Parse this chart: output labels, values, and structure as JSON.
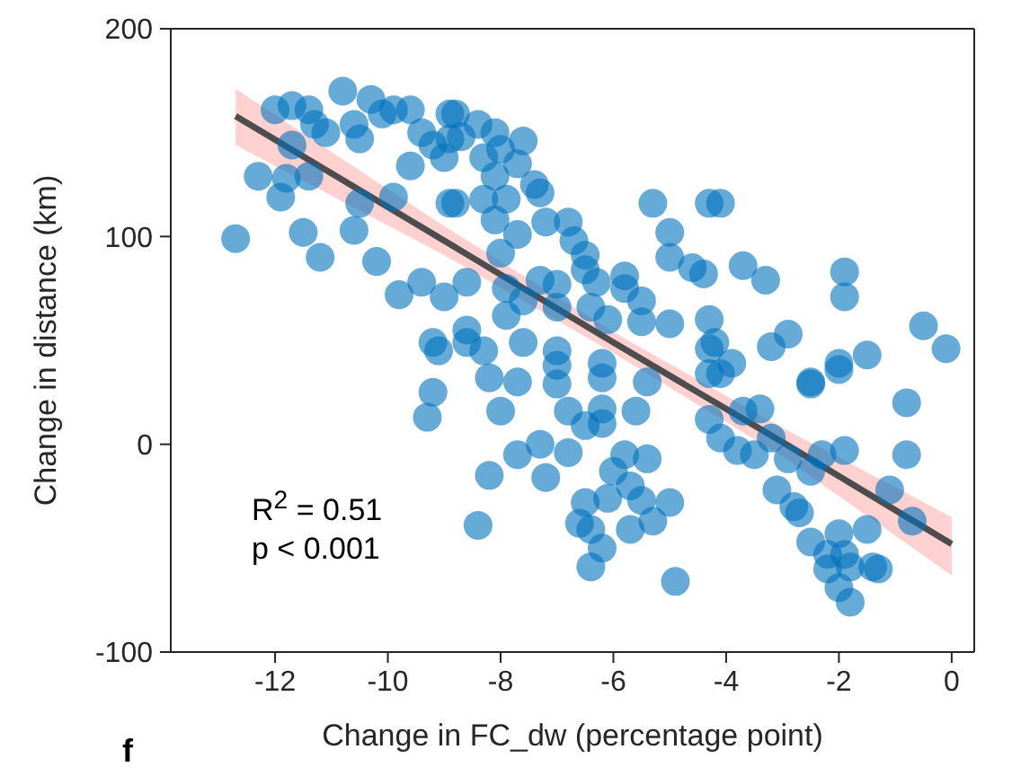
{
  "chart_data": {
    "type": "scatter",
    "xlabel": "Change in FC_dw (percentage point)",
    "ylabel": "Change in distance (km)",
    "xlim": [
      -13.85,
      0.4
    ],
    "ylim": [
      -100,
      200
    ],
    "xticks": [
      -12,
      -10,
      -8,
      -6,
      -4,
      -2,
      0
    ],
    "yticks": [
      -100,
      0,
      100,
      200
    ],
    "grid": false,
    "legend": false,
    "annotations": [
      "R$^{2}$ = 0.51",
      "p < 0.001",
      "f"
    ],
    "series": [
      {
        "type": "scatter",
        "color": "#0072bd",
        "marker": "circle",
        "x": [
          -12.7,
          -12.3,
          -11.9,
          -11.8,
          -11.4,
          -11.5,
          -11.2,
          -12.0,
          -11.7,
          -11.4,
          -11.3,
          -11.7,
          -11.1,
          -10.8,
          -10.6,
          -10.5,
          -10.3,
          -10.1,
          -9.9,
          -9.6,
          -10.6,
          -10.5,
          -10.2,
          -9.9,
          -9.8,
          -9.4,
          -9.6,
          -9.4,
          -9.2,
          -9.0,
          -8.9,
          -8.9,
          -8.9,
          -9.0,
          -9.2,
          -8.8,
          -8.7,
          -8.4,
          -8.1,
          -7.6,
          -8.3,
          -8.0,
          -7.7,
          -8.1,
          -7.4,
          -8.8,
          -8.3,
          -7.9,
          -8.1,
          -7.7,
          -7.3,
          -7.2,
          -6.8,
          -6.7,
          -6.5,
          -6.5,
          -6.3,
          -5.8,
          -5.8,
          -8.0,
          -8.6,
          -7.9,
          -7.3,
          -7.0,
          -7.6,
          -7.0,
          -6.4,
          -6.1,
          -5.5,
          -5.5,
          -5.0,
          -7.9,
          -8.6,
          -5.3,
          -5.0,
          -5.0,
          -4.6,
          -4.4,
          -4.3,
          -4.3,
          -4.1,
          -3.7,
          -3.3,
          -1.9,
          -1.9,
          -2.9,
          -3.2,
          -1.5,
          -2.0,
          -2.5,
          -0.5,
          -0.1,
          -4.2,
          -3.9,
          -9.1,
          -9.2,
          -9.3,
          -8.6,
          -8.3,
          -8.2,
          -7.7,
          -7.6,
          -7.0,
          -7.0,
          -7.0,
          -6.2,
          -6.2,
          -5.4,
          -8.0,
          -6.8,
          -6.5,
          -6.2,
          -6.2,
          -5.6,
          -7.3,
          -7.7,
          -8.2,
          -7.2,
          -6.8,
          -5.8,
          -5.4,
          -6.0,
          -5.7,
          -6.1,
          -6.5,
          -5.5,
          -5.0,
          -6.6,
          -6.4,
          -5.7,
          -5.3,
          -6.2,
          -6.4,
          -8.4,
          -4.9,
          -4.3,
          -4.3,
          -4.1,
          -2.5,
          -2.0,
          -0.8,
          -4.3,
          -4.1,
          -3.7,
          -3.4,
          -3.8,
          -3.5,
          -3.2,
          -2.9,
          -3.1,
          -2.8,
          -2.7,
          -2.5,
          -2.3,
          -1.9,
          -0.8,
          -1.1,
          -0.7,
          -1.5,
          -2.0,
          -2.5,
          -2.2,
          -1.9,
          -1.8,
          -1.4,
          -1.3,
          -2.2,
          -2.0,
          -1.8
        ],
        "values": [
          99,
          129,
          119,
          128,
          129,
          102,
          90,
          161,
          163,
          161,
          154,
          144,
          150,
          170,
          154,
          147,
          166,
          159,
          161,
          161,
          103,
          116,
          88,
          119,
          72,
          78,
          134,
          150,
          144,
          138,
          159,
          147,
          116,
          71,
          49,
          159,
          148,
          154,
          150,
          146,
          138,
          142,
          135,
          129,
          125,
          116,
          118,
          118,
          108,
          101,
          121,
          107,
          107,
          98,
          91,
          84,
          78,
          81,
          75,
          92,
          78,
          75,
          79,
          77,
          69,
          66,
          66,
          60,
          69,
          59,
          58,
          62,
          55,
          116,
          102,
          90,
          85,
          82,
          116,
          60,
          116,
          86,
          79,
          83,
          71,
          53,
          47,
          43,
          39,
          30,
          57,
          46,
          49,
          39,
          45,
          25,
          13,
          49,
          45,
          32,
          30,
          49,
          45,
          38,
          29,
          39,
          32,
          30,
          16,
          16,
          9,
          17,
          10,
          16,
          0,
          -5,
          -15,
          -16,
          -4,
          -5,
          -7,
          -13,
          -20,
          -26,
          -28,
          -27,
          -28,
          -38,
          -41,
          -41,
          -37,
          -50,
          -59,
          -39,
          -66,
          46,
          34,
          34,
          29,
          36,
          20,
          12,
          3,
          16,
          17,
          -3,
          -5,
          3,
          -7,
          -22,
          -30,
          -33,
          -13,
          -5,
          -3,
          -5,
          -22,
          -37,
          -41,
          -43,
          -47,
          -53,
          -53,
          -59,
          -59,
          -60,
          -60,
          -69,
          -76
        ]
      },
      {
        "type": "line",
        "color": "#4d4d4d",
        "marker": "none",
        "line_style": "solid",
        "x": [
          -12.7,
          -9,
          -6,
          -3,
          0
        ],
        "values": [
          158,
          98,
          49,
          1,
          -48
        ],
        "lower": [
          144,
          91,
          44,
          -6,
          -63
        ],
        "upper": [
          171,
          105,
          54,
          8,
          -35
        ]
      }
    ]
  }
}
